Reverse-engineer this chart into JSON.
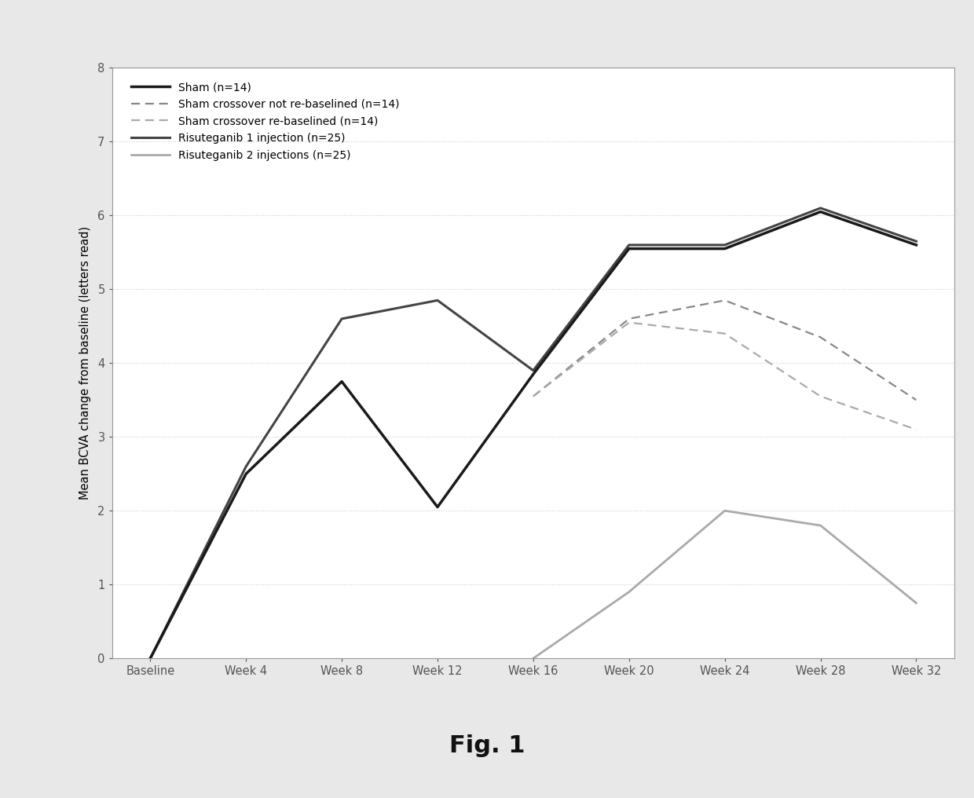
{
  "x_labels": [
    "Baseline",
    "Week 4",
    "Week 8",
    "Week 12",
    "Week 16",
    "Week 20",
    "Week 24",
    "Week 28",
    "Week 32"
  ],
  "x_values": [
    0,
    1,
    2,
    3,
    4,
    5,
    6,
    7,
    8
  ],
  "sham_y": [
    0,
    2.5,
    3.75,
    2.05,
    3.85,
    5.55,
    5.55,
    6.05,
    5.6
  ],
  "ris1_y": [
    0,
    2.6,
    4.6,
    4.85,
    3.9,
    5.6,
    5.6,
    6.1,
    5.65
  ],
  "crossover_x": [
    4,
    5,
    6,
    7,
    8
  ],
  "sham_co_not_y": [
    3.55,
    4.6,
    4.85,
    4.35,
    3.5
  ],
  "sham_co_re_y": [
    3.55,
    4.55,
    4.4,
    3.55,
    3.1
  ],
  "ris2_x": [
    4,
    5,
    6,
    7,
    8
  ],
  "ris2_y": [
    0.0,
    0.9,
    2.0,
    1.8,
    0.75
  ],
  "sham_color": "#1a1a1a",
  "ris1_color": "#444444",
  "co_not_color": "#888888",
  "co_re_color": "#aaaaaa",
  "ris2_color": "#aaaaaa",
  "ylim": [
    0,
    8
  ],
  "yticks": [
    0,
    1,
    2,
    3,
    4,
    5,
    6,
    7,
    8
  ],
  "ylabel": "Mean BCVA change from baseline (letters read)",
  "fig_label": "Fig. 1",
  "legend_labels": [
    "Sham (n=14)",
    "Sham crossover not re-baselined (n=14)",
    "Sham crossover re-baselined (n=14)",
    "Risuteganib 1 injection (n=25)",
    "Risuteganib 2 injections (n=25)"
  ],
  "outer_bg": "#e8e8e8",
  "inner_bg": "#ffffff",
  "grid_color": "#cccccc",
  "border_color": "#999999"
}
